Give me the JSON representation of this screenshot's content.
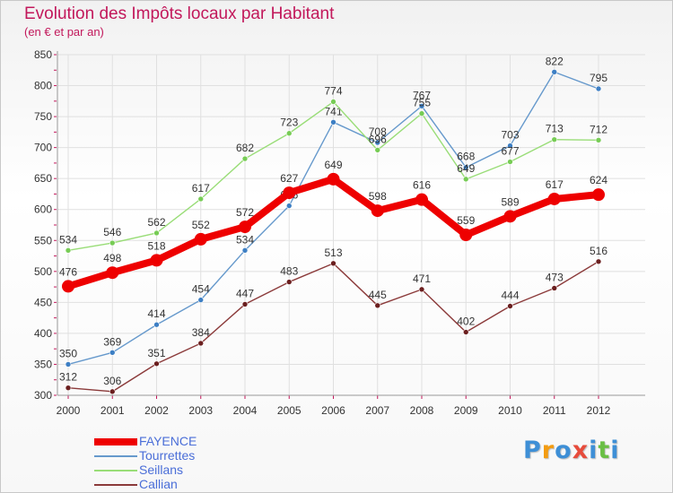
{
  "header": {
    "title": "Evolution des Impôts locaux par Habitant",
    "subtitle": "(en € et par an)"
  },
  "colors": {
    "title": "#c2185b",
    "grid": "#e0e0e0",
    "axis_ticks": "#c2185b",
    "legend_text": "#4a6ed8"
  },
  "chart_data": {
    "type": "line",
    "title": "Evolution des Impôts locaux par Habitant",
    "subtitle": "(en € et par an)",
    "xlabel": "",
    "ylabel": "",
    "ylim": [
      300,
      850
    ],
    "yticks": [
      300,
      350,
      400,
      450,
      500,
      550,
      600,
      650,
      700,
      750,
      800,
      850
    ],
    "grid": true,
    "legend_position": "bottom-left",
    "x": [
      "2000",
      "2001",
      "2002",
      "2003",
      "2004",
      "2005",
      "2006",
      "2007",
      "2008",
      "2009",
      "2010",
      "2011",
      "2012"
    ],
    "series": [
      {
        "name": "FAYENCE",
        "color": "#ee0000",
        "emphasis": true,
        "values": [
          476,
          498,
          518,
          552,
          572,
          627,
          649,
          598,
          616,
          559,
          589,
          617,
          624
        ]
      },
      {
        "name": "Tourrettes",
        "color": "#6699cc",
        "marker": "#3d7fc4",
        "emphasis": false,
        "values": [
          350,
          369,
          414,
          454,
          534,
          606,
          741,
          708,
          767,
          668,
          703,
          822,
          795
        ]
      },
      {
        "name": "Seillans",
        "color": "#99dd77",
        "marker": "#77cc55",
        "emphasis": false,
        "values": [
          534,
          546,
          562,
          617,
          682,
          723,
          774,
          696,
          755,
          649,
          677,
          713,
          712
        ]
      },
      {
        "name": "Callian",
        "color": "#8b3a3a",
        "marker": "#6b1f1f",
        "emphasis": false,
        "values": [
          312,
          306,
          351,
          384,
          447,
          483,
          513,
          445,
          471,
          402,
          444,
          473,
          516
        ]
      }
    ]
  },
  "logo": {
    "letters": [
      {
        "char": "P",
        "color": "#3e8fd6"
      },
      {
        "char": "r",
        "color": "#f39c12"
      },
      {
        "char": "o",
        "color": "#3e8fd6"
      },
      {
        "char": "x",
        "color": "#e74c3c"
      },
      {
        "char": "i",
        "color": "#3e8fd6"
      },
      {
        "char": "t",
        "color": "#6abf45"
      },
      {
        "char": "i",
        "color": "#3e8fd6"
      }
    ]
  }
}
